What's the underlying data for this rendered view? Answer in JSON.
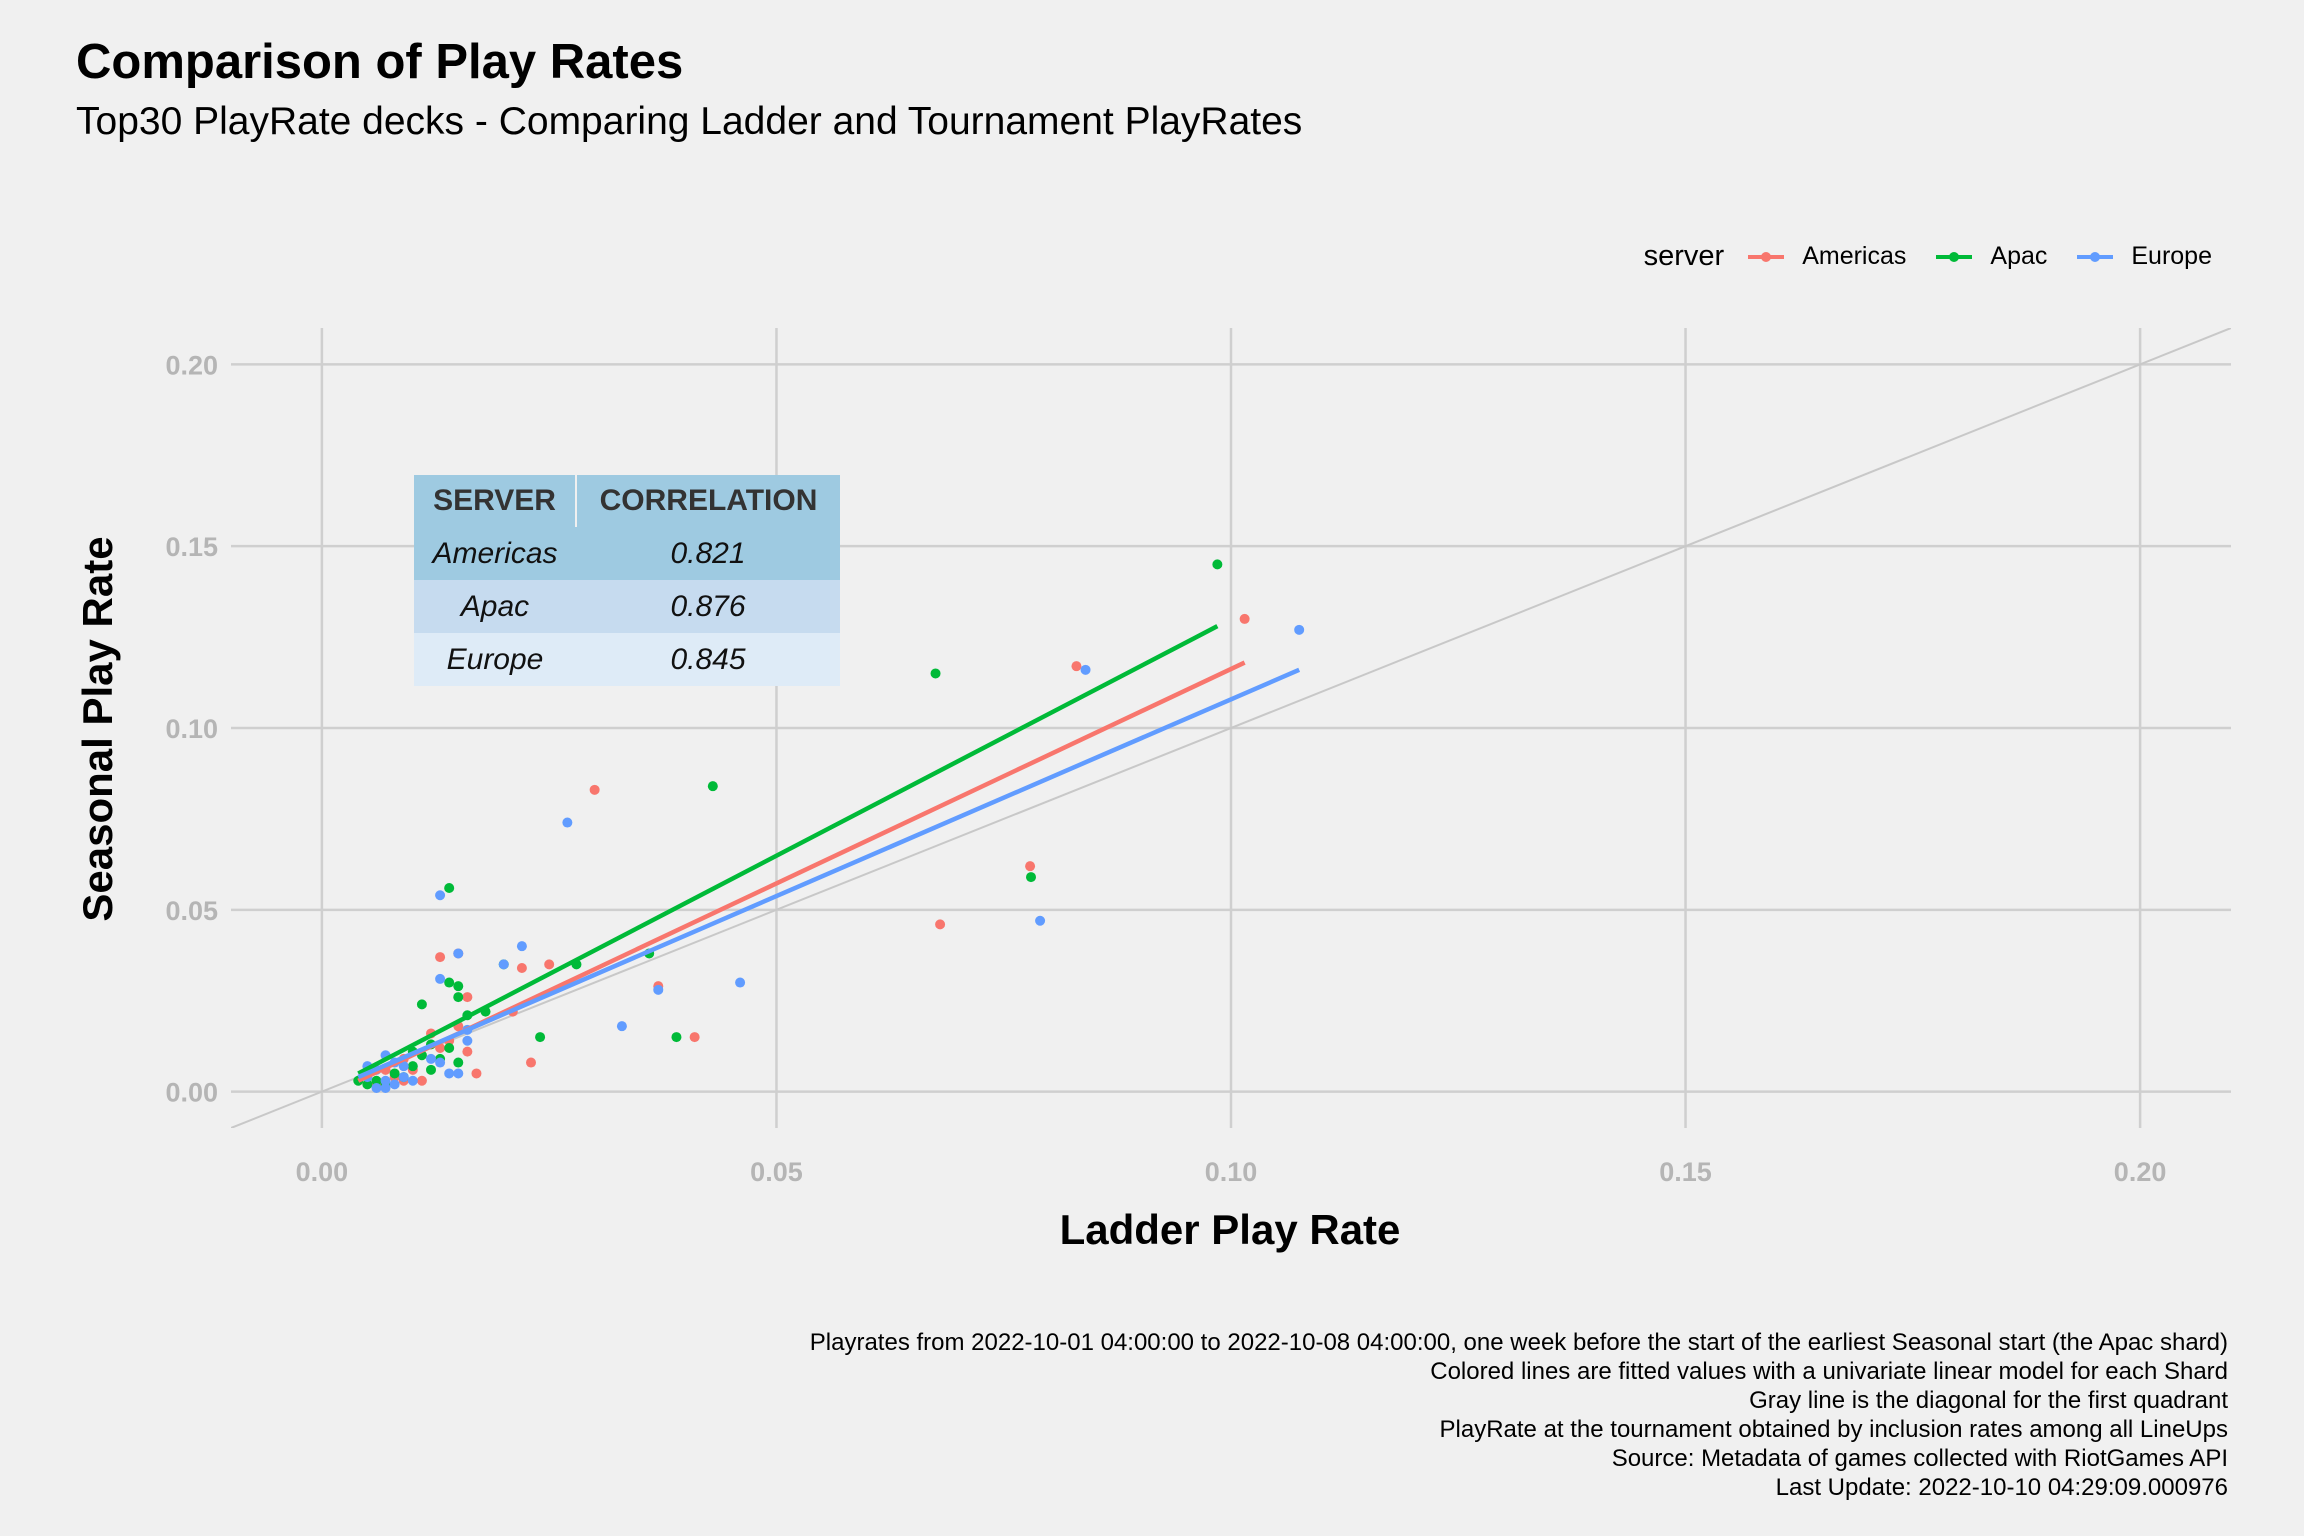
{
  "title": "Comparison of Play Rates",
  "subtitle": "Top30 PlayRate decks - Comparing Ladder and Tournament PlayRates",
  "legend": {
    "title": "server",
    "items": [
      {
        "name": "Americas",
        "color": "#f8766d"
      },
      {
        "name": "Apac",
        "color": "#00ba38"
      },
      {
        "name": "Europe",
        "color": "#619cff"
      }
    ]
  },
  "correlation_table": {
    "headers": [
      "SERVER",
      "CORRELATION"
    ],
    "rows": [
      {
        "server": "Americas",
        "correlation": "0.821"
      },
      {
        "server": "Apac",
        "correlation": "0.876"
      },
      {
        "server": "Europe",
        "correlation": "0.845"
      }
    ]
  },
  "caption": [
    "Playrates from 2022-10-01 04:00:00 to 2022-10-08 04:00:00, one week before the start of the earliest Seasonal start (the Apac shard)",
    "Colored lines are fitted values with a univariate linear model for each Shard",
    "Gray line is the diagonal for the first quadrant",
    "PlayRate at the tournament obtained by inclusion rates among all LineUps",
    "Source: Metadata of games collected with RiotGames API",
    "Last Update: 2022-10-10 04:29:09.000976"
  ],
  "chart_data": {
    "type": "scatter",
    "xlabel": "Ladder Play Rate",
    "ylabel": "Seasonal Play Rate",
    "xlim": [
      -0.01,
      0.21
    ],
    "ylim": [
      -0.01,
      0.21
    ],
    "x_ticks": [
      0.0,
      0.05,
      0.1,
      0.15,
      0.2
    ],
    "y_ticks": [
      0.0,
      0.05,
      0.1,
      0.15,
      0.2
    ],
    "x_tick_labels": [
      "0.00",
      "0.05",
      "0.10",
      "0.15",
      "0.20"
    ],
    "y_tick_labels": [
      "0.00",
      "0.05",
      "0.10",
      "0.15",
      "0.20"
    ],
    "grid": true,
    "legend_position": "top-right",
    "reference_line": {
      "label": "diagonal",
      "color": "#c8c8c8"
    },
    "series": [
      {
        "name": "Americas",
        "color": "#f8766d",
        "fit": {
          "x": [
            0.004,
            0.1015
          ],
          "y": [
            0.003,
            0.118
          ]
        },
        "points": [
          [
            0.0779,
            0.062
          ],
          [
            0.03,
            0.083
          ],
          [
            0.083,
            0.117
          ],
          [
            0.1015,
            0.13
          ],
          [
            0.068,
            0.046
          ],
          [
            0.013,
            0.037
          ],
          [
            0.015,
            0.038
          ],
          [
            0.016,
            0.026
          ],
          [
            0.025,
            0.035
          ],
          [
            0.022,
            0.034
          ],
          [
            0.021,
            0.022
          ],
          [
            0.037,
            0.029
          ],
          [
            0.041,
            0.015
          ],
          [
            0.023,
            0.008
          ],
          [
            0.017,
            0.005
          ],
          [
            0.016,
            0.011
          ],
          [
            0.014,
            0.014
          ],
          [
            0.012,
            0.016
          ],
          [
            0.011,
            0.003
          ],
          [
            0.01,
            0.006
          ],
          [
            0.009,
            0.009
          ],
          [
            0.008,
            0.004
          ],
          [
            0.007,
            0.006
          ],
          [
            0.006,
            0.002
          ],
          [
            0.013,
            0.012
          ],
          [
            0.015,
            0.018
          ],
          [
            0.009,
            0.003
          ],
          [
            0.005,
            0.005
          ]
        ]
      },
      {
        "name": "Apac",
        "color": "#00ba38",
        "fit": {
          "x": [
            0.004,
            0.0985
          ],
          "y": [
            0.005,
            0.128
          ]
        },
        "points": [
          [
            0.0985,
            0.145
          ],
          [
            0.0675,
            0.115
          ],
          [
            0.043,
            0.084
          ],
          [
            0.078,
            0.059
          ],
          [
            0.014,
            0.056
          ],
          [
            0.036,
            0.038
          ],
          [
            0.02,
            0.035
          ],
          [
            0.028,
            0.035
          ],
          [
            0.015,
            0.029
          ],
          [
            0.014,
            0.03
          ],
          [
            0.015,
            0.026
          ],
          [
            0.011,
            0.024
          ],
          [
            0.016,
            0.021
          ],
          [
            0.018,
            0.022
          ],
          [
            0.024,
            0.015
          ],
          [
            0.039,
            0.015
          ],
          [
            0.014,
            0.012
          ],
          [
            0.012,
            0.013
          ],
          [
            0.013,
            0.009
          ],
          [
            0.011,
            0.01
          ],
          [
            0.01,
            0.007
          ],
          [
            0.009,
            0.004
          ],
          [
            0.008,
            0.005
          ],
          [
            0.006,
            0.003
          ],
          [
            0.005,
            0.002
          ],
          [
            0.004,
            0.003
          ],
          [
            0.012,
            0.006
          ],
          [
            0.015,
            0.008
          ],
          [
            0.01,
            0.011
          ],
          [
            0.007,
            0.002
          ]
        ]
      },
      {
        "name": "Europe",
        "color": "#619cff",
        "fit": {
          "x": [
            0.004,
            0.1075
          ],
          "y": [
            0.004,
            0.116
          ]
        },
        "points": [
          [
            0.1075,
            0.127
          ],
          [
            0.084,
            0.116
          ],
          [
            0.027,
            0.074
          ],
          [
            0.013,
            0.054
          ],
          [
            0.079,
            0.047
          ],
          [
            0.022,
            0.04
          ],
          [
            0.015,
            0.038
          ],
          [
            0.02,
            0.035
          ],
          [
            0.013,
            0.031
          ],
          [
            0.046,
            0.03
          ],
          [
            0.037,
            0.028
          ],
          [
            0.033,
            0.018
          ],
          [
            0.016,
            0.017
          ],
          [
            0.016,
            0.014
          ],
          [
            0.013,
            0.008
          ],
          [
            0.014,
            0.005
          ],
          [
            0.015,
            0.005
          ],
          [
            0.009,
            0.007
          ],
          [
            0.007,
            0.01
          ],
          [
            0.008,
            0.008
          ],
          [
            0.006,
            0.006
          ],
          [
            0.005,
            0.004
          ],
          [
            0.007,
            0.003
          ],
          [
            0.008,
            0.002
          ],
          [
            0.006,
            0.001
          ],
          [
            0.009,
            0.004
          ],
          [
            0.012,
            0.009
          ],
          [
            0.01,
            0.003
          ],
          [
            0.005,
            0.007
          ],
          [
            0.007,
            0.001
          ]
        ]
      }
    ]
  }
}
